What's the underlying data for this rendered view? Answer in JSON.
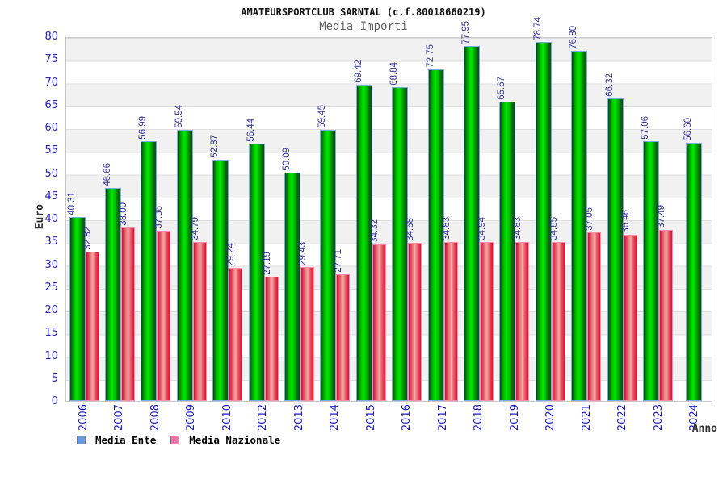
{
  "header": {
    "title": "AMATEURSPORTCLUB SARNTAL (c.f.80018660219)",
    "subtitle": "Media Importi"
  },
  "axes": {
    "y_label": "Euro",
    "x_label": "Anno",
    "y_ticks": [
      0,
      5,
      10,
      15,
      20,
      25,
      30,
      35,
      40,
      45,
      50,
      55,
      60,
      65,
      70,
      75,
      80
    ]
  },
  "legend": [
    {
      "label": "Media Ente",
      "color": "#6699dd"
    },
    {
      "label": "Media Nazionale",
      "color": "#ee77aa"
    }
  ],
  "colors": {
    "bar_ente": "#00cc00",
    "bar_nazionale": "#ee3344",
    "bar_ente_border": "#7aa8e8",
    "bar_nazionale_border": "#ff8caa",
    "tick_text": "#2222cc",
    "value_text": "#333399",
    "title_text": "#111111",
    "subtitle_text": "#666666"
  },
  "chart_data": {
    "type": "bar",
    "title": "AMATEURSPORTCLUB SARNTAL (c.f.80018660219)",
    "subtitle": "Media Importi",
    "xlabel": "Anno",
    "ylabel": "Euro",
    "ylim": [
      0,
      80
    ],
    "y_step": 5,
    "grid": "horizontal-bands",
    "legend_position": "bottom-left",
    "categories": [
      "2006",
      "2007",
      "2008",
      "2009",
      "2010",
      "2012",
      "2013",
      "2014",
      "2015",
      "2016",
      "2017",
      "2018",
      "2019",
      "2020",
      "2021",
      "2022",
      "2023",
      "2024"
    ],
    "series": [
      {
        "name": "Media Ente",
        "values": [
          40.31,
          46.66,
          56.99,
          59.54,
          52.87,
          56.44,
          50.09,
          59.45,
          69.42,
          68.84,
          72.75,
          77.95,
          65.67,
          78.74,
          76.8,
          66.32,
          57.06,
          56.6
        ]
      },
      {
        "name": "Media Nazionale",
        "values": [
          32.82,
          38.0,
          37.36,
          34.79,
          29.24,
          27.19,
          29.43,
          27.71,
          34.32,
          34.68,
          34.83,
          34.94,
          34.83,
          34.85,
          37.05,
          36.46,
          37.49,
          null
        ]
      }
    ]
  }
}
